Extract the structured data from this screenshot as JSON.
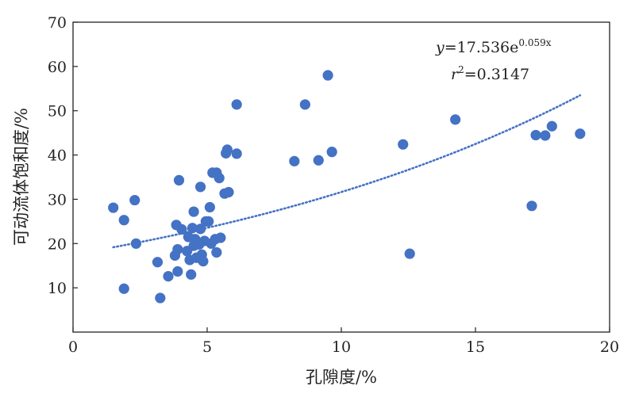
{
  "chart_data": {
    "type": "scatter",
    "title": "",
    "xlabel": "孔隙度/%",
    "ylabel": "可动流体饱和度/%",
    "xlim": [
      0,
      20
    ],
    "ylim": [
      0,
      70
    ],
    "xticks": [
      "0",
      "5",
      "10",
      "15",
      "20"
    ],
    "yticks": [
      "10",
      "20",
      "30",
      "40",
      "50",
      "60",
      "70"
    ],
    "grid": false,
    "legend": "none",
    "colors": {
      "points": "#4472c4",
      "trendline": "#4472c4",
      "axis": "#222222"
    },
    "series": [
      {
        "points": [
          [
            1.5,
            28.1
          ],
          [
            1.9,
            25.3
          ],
          [
            2.3,
            29.8
          ],
          [
            2.35,
            20.0
          ],
          [
            1.9,
            9.8
          ],
          [
            3.15,
            15.8
          ],
          [
            3.25,
            7.7
          ],
          [
            3.55,
            12.6
          ],
          [
            3.8,
            17.3
          ],
          [
            3.85,
            24.2
          ],
          [
            3.9,
            18.7
          ],
          [
            3.9,
            13.7
          ],
          [
            3.95,
            34.3
          ],
          [
            4.05,
            23.2
          ],
          [
            4.25,
            18.3
          ],
          [
            4.3,
            21.5
          ],
          [
            4.35,
            16.3
          ],
          [
            4.4,
            13.0
          ],
          [
            4.45,
            23.5
          ],
          [
            4.5,
            19.5
          ],
          [
            4.5,
            27.2
          ],
          [
            4.55,
            21.0
          ],
          [
            4.6,
            16.8
          ],
          [
            4.7,
            19.8
          ],
          [
            4.75,
            32.8
          ],
          [
            4.75,
            23.3
          ],
          [
            4.8,
            17.5
          ],
          [
            4.85,
            16.0
          ],
          [
            4.9,
            20.6
          ],
          [
            4.95,
            25.0
          ],
          [
            5.05,
            25.0
          ],
          [
            5.1,
            28.2
          ],
          [
            5.15,
            20.0
          ],
          [
            5.2,
            36.0
          ],
          [
            5.3,
            21.0
          ],
          [
            5.35,
            36.0
          ],
          [
            5.35,
            18.0
          ],
          [
            5.45,
            34.8
          ],
          [
            5.5,
            21.3
          ],
          [
            5.65,
            31.3
          ],
          [
            5.7,
            40.4
          ],
          [
            5.75,
            41.2
          ],
          [
            5.8,
            31.6
          ],
          [
            6.1,
            40.3
          ],
          [
            6.1,
            51.4
          ],
          [
            8.25,
            38.6
          ],
          [
            8.65,
            51.4
          ],
          [
            9.15,
            38.8
          ],
          [
            9.5,
            58.0
          ],
          [
            9.65,
            40.7
          ],
          [
            12.3,
            42.4
          ],
          [
            12.55,
            17.7
          ],
          [
            14.25,
            48.0
          ],
          [
            17.1,
            28.5
          ],
          [
            17.25,
            44.5
          ],
          [
            17.6,
            44.4
          ],
          [
            17.85,
            46.5
          ],
          [
            18.9,
            44.8
          ]
        ]
      }
    ],
    "trendline": {
      "style": "dotted",
      "a": 17.536,
      "b": 0.059,
      "x_range": [
        1.5,
        18.9
      ]
    },
    "annotations": {
      "equation": {
        "y_var": "y",
        "eq_coef": "=17.536e",
        "exponent": "0.059x"
      },
      "r2": {
        "r_var": "r",
        "r_sup": "2",
        "r_value": "=0.3147"
      }
    }
  }
}
